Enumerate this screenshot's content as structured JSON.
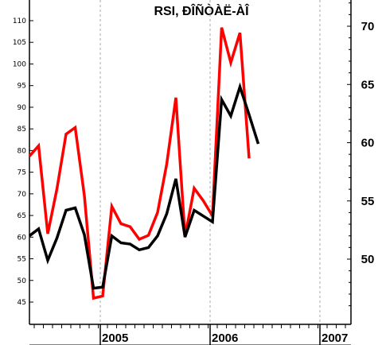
{
  "chart_data": {
    "type": "line",
    "title": "RSI, ĐÎÑÒÀË-ÀÎ",
    "xlabel": "",
    "ylabel": "",
    "x_tick_labels": [
      "2005",
      "2006",
      "2007"
    ],
    "left_axis": {
      "ticks": [
        "45",
        "50",
        "55",
        "60",
        "65",
        "70",
        "75",
        "80",
        "85",
        "90",
        "95",
        "100",
        "105",
        "110"
      ],
      "ylim": [
        40,
        115
      ]
    },
    "right_axis": {
      "ticks": [
        "50",
        "55",
        "60",
        "65",
        "70"
      ],
      "ylim": [
        44.4,
        72.7
      ]
    },
    "grid": "vertical dashed at year boundaries",
    "series": [
      {
        "axis": "left",
        "color": "#ff0000",
        "values": [
          78.7,
          81.1,
          60.8,
          71.1,
          83.8,
          85.3,
          69.6,
          45.9,
          46.4,
          67.1,
          63.1,
          62.4,
          59.5,
          60.4,
          65.7,
          76.9,
          92.2,
          60.1,
          71.3,
          68.4,
          64.9,
          108.4,
          100.3,
          107.2,
          78.2
        ]
      },
      {
        "axis": "right",
        "color": "#000000",
        "values": [
          52.0,
          52.6,
          49.9,
          51.8,
          54.2,
          54.4,
          52.1,
          47.5,
          47.6,
          52.0,
          51.4,
          51.3,
          50.8,
          51.0,
          52.0,
          53.9,
          56.9,
          51.9,
          54.2,
          53.7,
          53.2,
          63.7,
          62.3,
          64.8,
          62.4,
          59.9
        ]
      }
    ],
    "colors": {
      "background": "#ffffff",
      "axis": "#000000",
      "grid": "#aaaaaa"
    }
  }
}
